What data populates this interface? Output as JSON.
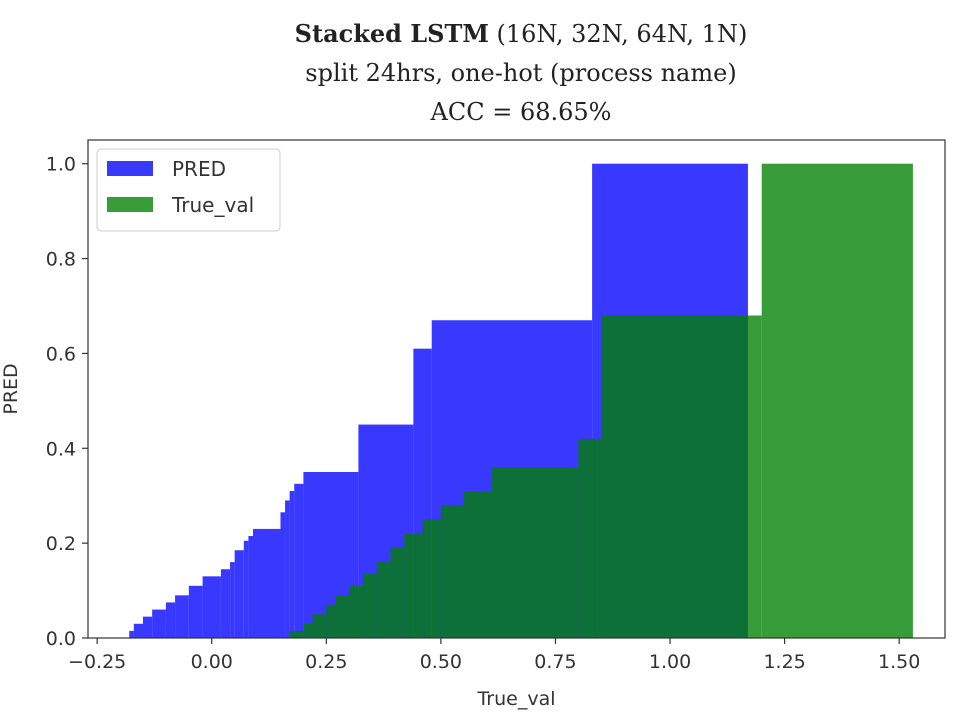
{
  "title": {
    "bold": "Stacked LSTM",
    "rest": " (16N, 32N, 64N, 1N)",
    "line2": "split 24hrs, one-hot (process name)",
    "line3": "ACC = 68.65%"
  },
  "chart_data": {
    "type": "area",
    "xlabel": "True_val",
    "ylabel": "PRED",
    "xlim": [
      -0.27,
      1.6
    ],
    "ylim": [
      0,
      1.05
    ],
    "xticks": [
      "−0.25",
      "0.00",
      "0.25",
      "0.50",
      "0.75",
      "1.00",
      "1.25",
      "1.50"
    ],
    "xtick_values": [
      -0.25,
      0,
      0.25,
      0.5,
      0.75,
      1.0,
      1.25,
      1.5
    ],
    "yticks": [
      "0.0",
      "0.2",
      "0.4",
      "0.6",
      "0.8",
      "1.0"
    ],
    "ytick_values": [
      0,
      0.2,
      0.4,
      0.6,
      0.8,
      1.0
    ],
    "legend_position": "top-left",
    "series": [
      {
        "name": "PRED",
        "color": "#0000ff",
        "opacity": 0.78,
        "steps": [
          [
            -0.18,
            0.015
          ],
          [
            -0.17,
            0.03
          ],
          [
            -0.15,
            0.045
          ],
          [
            -0.13,
            0.06
          ],
          [
            -0.1,
            0.075
          ],
          [
            -0.08,
            0.09
          ],
          [
            -0.05,
            0.11
          ],
          [
            -0.02,
            0.13
          ],
          [
            0.02,
            0.145
          ],
          [
            0.04,
            0.16
          ],
          [
            0.05,
            0.185
          ],
          [
            0.07,
            0.205
          ],
          [
            0.08,
            0.215
          ],
          [
            0.09,
            0.23
          ],
          [
            0.15,
            0.265
          ],
          [
            0.16,
            0.29
          ],
          [
            0.17,
            0.31
          ],
          [
            0.18,
            0.325
          ],
          [
            0.2,
            0.35
          ],
          [
            0.32,
            0.45
          ],
          [
            0.44,
            0.61
          ],
          [
            0.48,
            0.67
          ],
          [
            0.83,
            1.0
          ],
          [
            1.17,
            0
          ]
        ]
      },
      {
        "name": "True_val",
        "color": "#008000",
        "opacity": 0.78,
        "steps": [
          [
            0.17,
            0.015
          ],
          [
            0.2,
            0.03
          ],
          [
            0.22,
            0.05
          ],
          [
            0.25,
            0.07
          ],
          [
            0.27,
            0.09
          ],
          [
            0.3,
            0.11
          ],
          [
            0.33,
            0.135
          ],
          [
            0.36,
            0.16
          ],
          [
            0.39,
            0.19
          ],
          [
            0.42,
            0.22
          ],
          [
            0.46,
            0.25
          ],
          [
            0.5,
            0.28
          ],
          [
            0.55,
            0.31
          ],
          [
            0.61,
            0.36
          ],
          [
            0.8,
            0.42
          ],
          [
            0.85,
            0.68
          ],
          [
            1.2,
            1.0
          ],
          [
            1.53,
            0
          ]
        ]
      }
    ]
  }
}
